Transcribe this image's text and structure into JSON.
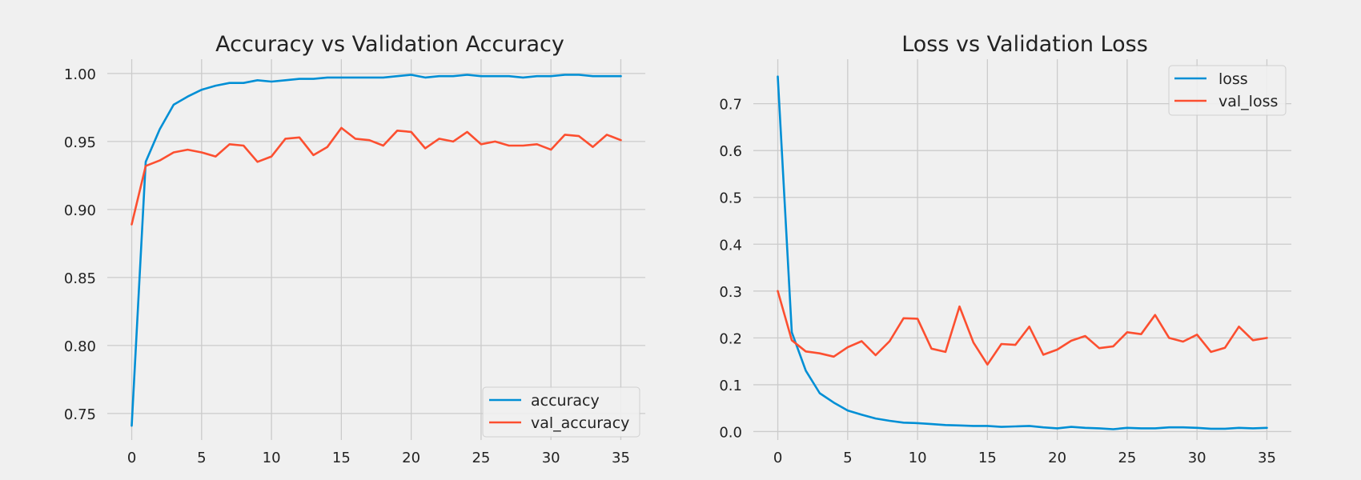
{
  "chart_data": [
    {
      "type": "line",
      "title": "Accuracy vs Validation Accuracy",
      "xlabel": "",
      "ylabel": "",
      "xlim": [
        -1.75,
        36.75
      ],
      "ylim": [
        0.7305,
        1.0105
      ],
      "xticks": [
        0,
        5,
        10,
        15,
        20,
        25,
        30,
        35
      ],
      "yticks": [
        0.75,
        0.8,
        0.85,
        0.9,
        0.95,
        1.0
      ],
      "ytick_labels": [
        "0.75",
        "0.80",
        "0.85",
        "0.90",
        "0.95",
        "1.00"
      ],
      "grid": true,
      "legend_position": "lower-right",
      "x": [
        0,
        1,
        2,
        3,
        4,
        5,
        6,
        7,
        8,
        9,
        10,
        11,
        12,
        13,
        14,
        15,
        16,
        17,
        18,
        19,
        20,
        21,
        22,
        23,
        24,
        25,
        26,
        27,
        28,
        29,
        30,
        31,
        32,
        33,
        34,
        35
      ],
      "series": [
        {
          "name": "accuracy",
          "color": "#008fd5",
          "values": [
            0.741,
            0.935,
            0.959,
            0.977,
            0.983,
            0.988,
            0.991,
            0.993,
            0.993,
            0.995,
            0.994,
            0.995,
            0.996,
            0.996,
            0.997,
            0.997,
            0.997,
            0.997,
            0.997,
            0.998,
            0.999,
            0.997,
            0.998,
            0.998,
            0.999,
            0.998,
            0.998,
            0.998,
            0.997,
            0.998,
            0.998,
            0.999,
            0.999,
            0.998,
            0.998,
            0.998
          ]
        },
        {
          "name": "val_accuracy",
          "color": "#fc4f30",
          "values": [
            0.889,
            0.932,
            0.936,
            0.942,
            0.944,
            0.942,
            0.939,
            0.948,
            0.947,
            0.935,
            0.939,
            0.952,
            0.953,
            0.94,
            0.946,
            0.96,
            0.952,
            0.951,
            0.947,
            0.958,
            0.957,
            0.945,
            0.952,
            0.95,
            0.957,
            0.948,
            0.95,
            0.947,
            0.947,
            0.948,
            0.944,
            0.955,
            0.954,
            0.946,
            0.955,
            0.951
          ]
        }
      ]
    },
    {
      "type": "line",
      "title": "Loss vs Validation Loss",
      "xlabel": "",
      "ylabel": "",
      "xlim": [
        -1.75,
        36.75
      ],
      "ylim": [
        -0.018,
        0.795
      ],
      "xticks": [
        0,
        5,
        10,
        15,
        20,
        25,
        30,
        35
      ],
      "yticks": [
        0.0,
        0.1,
        0.2,
        0.3,
        0.4,
        0.5,
        0.6,
        0.7
      ],
      "ytick_labels": [
        "0.0",
        "0.1",
        "0.2",
        "0.3",
        "0.4",
        "0.5",
        "0.6",
        "0.7"
      ],
      "grid": true,
      "legend_position": "upper-right",
      "x": [
        0,
        1,
        2,
        3,
        4,
        5,
        6,
        7,
        8,
        9,
        10,
        11,
        12,
        13,
        14,
        15,
        16,
        17,
        18,
        19,
        20,
        21,
        22,
        23,
        24,
        25,
        26,
        27,
        28,
        29,
        30,
        31,
        32,
        33,
        34,
        35
      ],
      "series": [
        {
          "name": "loss",
          "color": "#008fd5",
          "values": [
            0.758,
            0.212,
            0.13,
            0.082,
            0.062,
            0.045,
            0.036,
            0.028,
            0.023,
            0.019,
            0.018,
            0.016,
            0.014,
            0.013,
            0.012,
            0.012,
            0.01,
            0.011,
            0.012,
            0.009,
            0.007,
            0.01,
            0.008,
            0.007,
            0.005,
            0.008,
            0.007,
            0.007,
            0.009,
            0.009,
            0.008,
            0.006,
            0.006,
            0.008,
            0.007,
            0.008
          ]
        },
        {
          "name": "val_loss",
          "color": "#fc4f30",
          "values": [
            0.3,
            0.195,
            0.171,
            0.167,
            0.16,
            0.18,
            0.193,
            0.163,
            0.193,
            0.242,
            0.241,
            0.177,
            0.17,
            0.267,
            0.19,
            0.143,
            0.187,
            0.185,
            0.224,
            0.164,
            0.175,
            0.194,
            0.204,
            0.178,
            0.182,
            0.212,
            0.208,
            0.249,
            0.2,
            0.192,
            0.207,
            0.17,
            0.179,
            0.224,
            0.195,
            0.2
          ]
        }
      ]
    }
  ]
}
